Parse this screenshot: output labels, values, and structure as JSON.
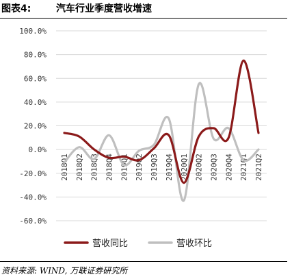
{
  "header": {
    "figure_number": "图表4:",
    "title": "汽车行业季度营收增速"
  },
  "footer": {
    "source": "资料来源: WIND, 万联证券研究所"
  },
  "colors": {
    "series_yoy": "#8B1A1A",
    "series_qoq": "#BFBFBF",
    "gridline": "#D9D9D9"
  },
  "chart_data": {
    "type": "line",
    "title": "汽车行业季度营收增速",
    "xlabel": "",
    "ylabel": "",
    "ylim": [
      -60,
      100
    ],
    "yticks": [
      -60,
      -40,
      -20,
      0,
      20,
      40,
      60,
      80,
      100
    ],
    "ytick_labels": [
      "-60.0%",
      "-40.0%",
      "-20.0%",
      "0.0%",
      "20.0%",
      "40.0%",
      "60.0%",
      "80.0%",
      "100.0%"
    ],
    "grid": "horizontal",
    "legend_position": "bottom",
    "categories": [
      "2018Q1",
      "2018Q2",
      "2018Q3",
      "2018Q4",
      "2019Q1",
      "2019Q2",
      "2019Q3",
      "2019Q4",
      "2020Q1",
      "2020Q2",
      "2020Q3",
      "2020Q4",
      "2021Q1",
      "2021Q2"
    ],
    "series": [
      {
        "name": "营收同比",
        "values": [
          14,
          11,
          0,
          -7,
          -6,
          -9,
          1,
          12,
          -28,
          11,
          18,
          10,
          75,
          14
        ]
      },
      {
        "name": "营收环比",
        "values": [
          -11,
          2,
          -8,
          12,
          -13,
          -1,
          4,
          26,
          -43,
          55,
          9,
          18,
          -9,
          0
        ]
      }
    ]
  }
}
